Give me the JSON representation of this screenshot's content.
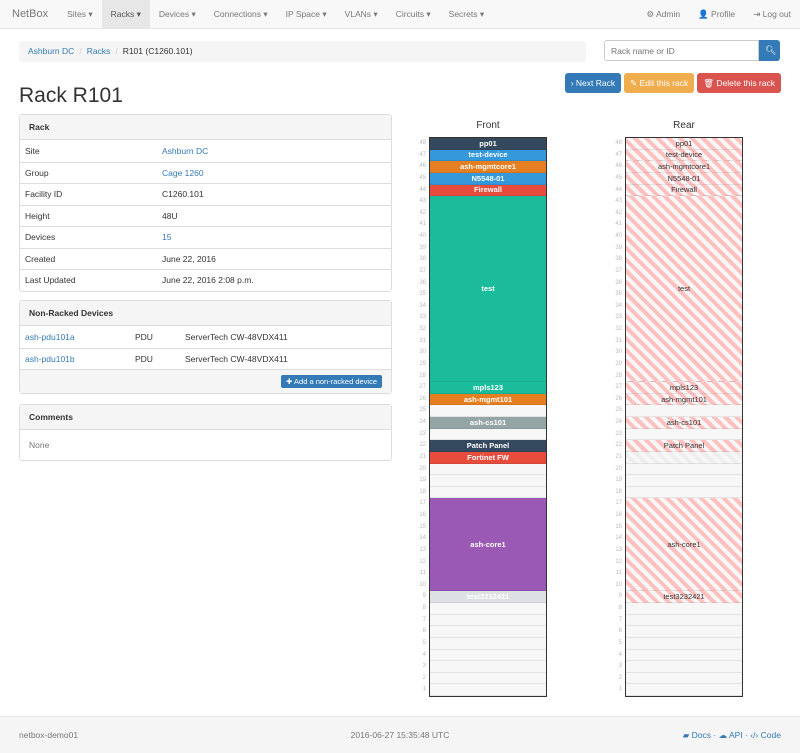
{
  "nav": {
    "brand": "NetBox",
    "items": [
      "Sites ▾",
      "Racks ▾",
      "Devices ▾",
      "Connections ▾",
      "IP Space ▾",
      "VLANs ▾",
      "Circuits ▾",
      "Secrets ▾"
    ],
    "active": 1,
    "admin": "Admin",
    "profile": "Profile",
    "logout": "Log out"
  },
  "breadcrumb": [
    "Ashburn DC",
    "Racks",
    "R101 (C1260.101)"
  ],
  "search": {
    "placeholder": "Rack name or ID"
  },
  "buttons": {
    "next": "Next Rack",
    "edit": "Edit this rack",
    "delete": "Delete this rack"
  },
  "title": "Rack R101",
  "rack_panel": {
    "heading": "Rack",
    "rows": [
      {
        "k": "Site",
        "v": "Ashburn DC"
      },
      {
        "k": "Group",
        "v": "Cage 1260"
      },
      {
        "k": "Facility ID",
        "v": "C1260.101"
      },
      {
        "k": "Height",
        "v": "48U"
      },
      {
        "k": "Devices",
        "v": "15"
      },
      {
        "k": "Created",
        "v": "June 22, 2016"
      },
      {
        "k": "Last Updated",
        "v": "June 22, 2016 2:08 p.m."
      }
    ]
  },
  "nonracked": {
    "heading": "Non-Racked Devices",
    "rows": [
      {
        "name": "ash-pdu101a",
        "role": "PDU",
        "type": "ServerTech CW-48VDX411"
      },
      {
        "name": "ash-pdu101b",
        "role": "PDU",
        "type": "ServerTech CW-48VDX411"
      }
    ],
    "add": "Add a non-racked device"
  },
  "comments": {
    "heading": "Comments",
    "body": "None"
  },
  "elevation": {
    "front_label": "Front",
    "rear_label": "Rear",
    "height": 48,
    "devices": [
      {
        "name": "pp01",
        "top": 48,
        "u": 1,
        "color": "#34495e"
      },
      {
        "name": "test-device",
        "top": 47,
        "u": 1,
        "color": "#3498db"
      },
      {
        "name": "ash-mgmtcore1",
        "top": 46,
        "u": 1,
        "color": "#e67e22"
      },
      {
        "name": "N5548-01",
        "top": 45,
        "u": 1,
        "color": "#3498db"
      },
      {
        "name": "Firewall",
        "top": 44,
        "u": 1,
        "color": "#e74c3c"
      },
      {
        "name": "test",
        "top": 43,
        "u": 16,
        "color": "#1abc9c"
      },
      {
        "name": "mpls123",
        "top": 27,
        "u": 1,
        "color": "#1abc9c"
      },
      {
        "name": "ash-mgmt101",
        "top": 26,
        "u": 1,
        "color": "#e67e22"
      },
      {
        "name": "ash-cs101",
        "top": 24,
        "u": 1,
        "color": "#95a5a6"
      },
      {
        "name": "Patch Panel",
        "top": 22,
        "u": 1,
        "color": "#34495e"
      },
      {
        "name": "Fortinet FW",
        "top": 21,
        "u": 1,
        "color": "#e74c3c",
        "rear_hidden": true
      },
      {
        "name": "ash-core1",
        "top": 17,
        "u": 8,
        "color": "#9b59b6"
      },
      {
        "name": "test3232421",
        "top": 9,
        "u": 1,
        "color": "#dde1e3"
      }
    ]
  },
  "footer": {
    "host": "netbox-demo01",
    "time": "2016-06-27 15:35:48 UTC",
    "docs": "Docs",
    "api": "API",
    "code": "Code"
  }
}
